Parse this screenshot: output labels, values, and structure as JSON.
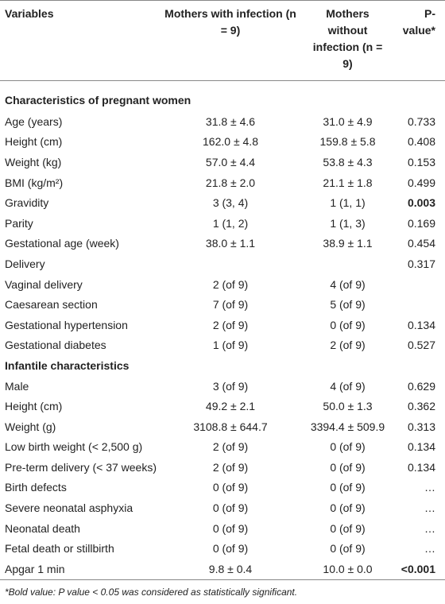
{
  "table": {
    "header": [
      "Variables",
      "Mothers with infection (n = 9)",
      "Mothers without infection (n = 9)",
      "P-value*"
    ],
    "rows": [
      {
        "section": "Characteristics of pregnant women"
      },
      {
        "cells": [
          "Age (years)",
          "31.8 ± 4.6",
          "31.0 ± 4.9",
          "0.733"
        ]
      },
      {
        "cells": [
          "Height (cm)",
          "162.0 ± 4.8",
          "159.8 ± 5.8",
          "0.408"
        ]
      },
      {
        "cells": [
          "Weight (kg)",
          "57.0 ± 4.4",
          "53.8 ± 4.3",
          "0.153"
        ]
      },
      {
        "cells": [
          "BMI (kg/m²)",
          "21.8 ± 2.0",
          "21.1 ± 1.8",
          "0.499"
        ]
      },
      {
        "cells": [
          "Gravidity",
          "3 (3, 4)",
          "1 (1, 1)",
          "0.003"
        ],
        "bold_p": true
      },
      {
        "cells": [
          "Parity",
          "1 (1, 2)",
          "1 (1, 3)",
          "0.169"
        ]
      },
      {
        "cells": [
          "Gestational age (week)",
          "38.0 ± 1.1",
          "38.9 ± 1.1",
          "0.454"
        ]
      },
      {
        "cells": [
          "Delivery",
          "",
          "",
          "0.317"
        ]
      },
      {
        "cells": [
          "Vaginal delivery",
          "2 (of 9)",
          "4 (of 9)",
          ""
        ]
      },
      {
        "cells": [
          "Caesarean section",
          "7 (of 9)",
          "5 (of 9)",
          ""
        ]
      },
      {
        "cells": [
          "Gestational hypertension",
          "2 (of 9)",
          "0 (of 9)",
          "0.134"
        ]
      },
      {
        "cells": [
          "Gestational diabetes",
          "1 (of 9)",
          "2 (of 9)",
          "0.527"
        ]
      },
      {
        "section": "Infantile characteristics"
      },
      {
        "cells": [
          "Male",
          "3 (of 9)",
          "4 (of 9)",
          "0.629"
        ]
      },
      {
        "cells": [
          "Height (cm)",
          "49.2 ± 2.1",
          "50.0 ± 1.3",
          "0.362"
        ]
      },
      {
        "cells": [
          "Weight (g)",
          "3108.8 ± 644.7",
          "3394.4 ± 509.9",
          "0.313"
        ]
      },
      {
        "cells": [
          "Low birth weight (< 2,500 g)",
          "2 (of 9)",
          "0 (of 9)",
          "0.134"
        ]
      },
      {
        "cells": [
          "Pre-term delivery (< 37 weeks)",
          "2 (of 9)",
          "0 (of 9)",
          "0.134"
        ]
      },
      {
        "cells": [
          "Birth defects",
          "0 (of 9)",
          "0 (of 9)",
          "…"
        ]
      },
      {
        "cells": [
          "Severe neonatal asphyxia",
          "0 (of 9)",
          "0 (of 9)",
          "…"
        ]
      },
      {
        "cells": [
          "Neonatal death",
          "0 (of 9)",
          "0 (of 9)",
          "…"
        ]
      },
      {
        "cells": [
          "Fetal death or stillbirth",
          "0 (of 9)",
          "0 (of 9)",
          "…"
        ]
      },
      {
        "cells": [
          "Apgar 1 min",
          "9.8 ± 0.4",
          "10.0 ± 0.0",
          "<0.001"
        ],
        "bold_p": true
      }
    ],
    "footnote": "*Bold value: P value < 0.05 was considered as statistically significant."
  }
}
